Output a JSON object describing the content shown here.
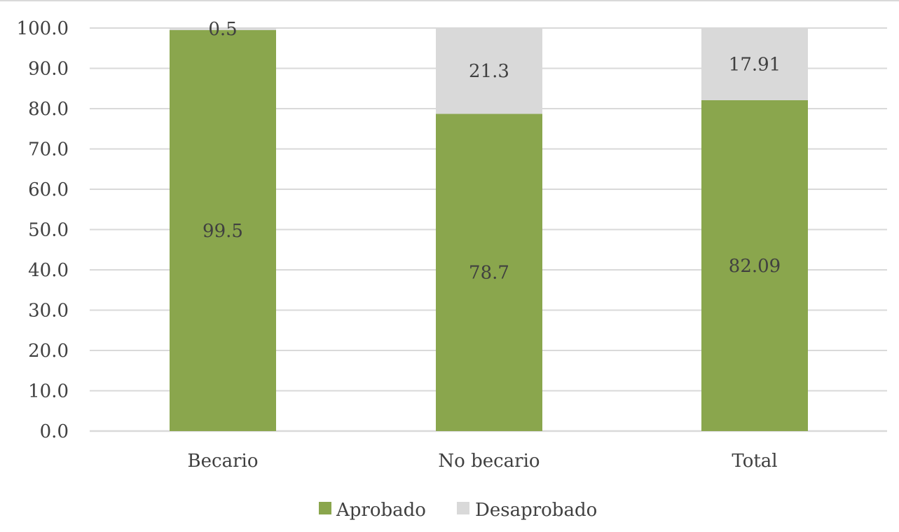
{
  "chart_data": {
    "type": "bar",
    "stacked": true,
    "categories": [
      "Becario",
      "No becario",
      "Total"
    ],
    "series": [
      {
        "name": "Aprobado",
        "values": [
          99.5,
          78.7,
          82.09
        ],
        "labels": [
          "99.5",
          "78.7",
          "82.09"
        ],
        "color": "#8aa64d"
      },
      {
        "name": "Desaprobado",
        "values": [
          0.5,
          21.3,
          17.91
        ],
        "labels": [
          "0.5",
          "21.3",
          "17.91"
        ],
        "color": "#d9d9d9"
      }
    ],
    "ylim": [
      0,
      100
    ],
    "yticks": [
      0,
      10,
      20,
      30,
      40,
      50,
      60,
      70,
      80,
      90,
      100
    ],
    "ytick_labels": [
      "0.0",
      "10.0",
      "20.0",
      "30.0",
      "40.0",
      "50.0",
      "60.0",
      "70.0",
      "80.0",
      "90.0",
      "100.0"
    ],
    "grid": true,
    "legend_position": "bottom",
    "title": "",
    "xlabel": "",
    "ylabel": "",
    "gridline_color": "#d9d9d9",
    "text_color": "#404040"
  }
}
